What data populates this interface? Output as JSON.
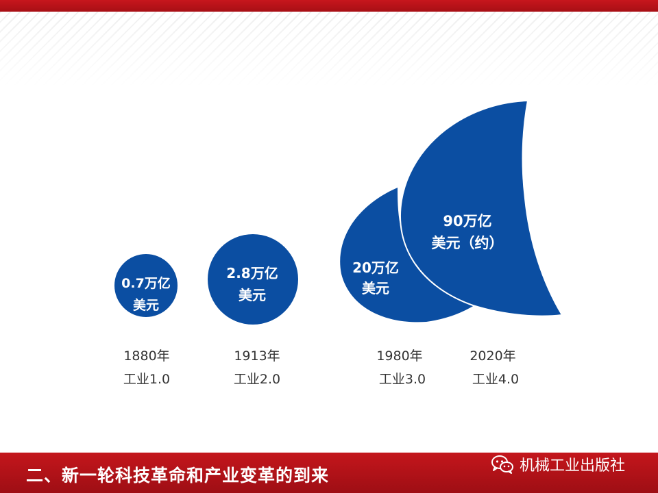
{
  "slide": {
    "section_title": "二、新一轮科技革命和产业变革的到来",
    "watermark_label": "机械工业出版社",
    "colors": {
      "bar_red": "#c4161c",
      "bubble_blue": "#0b4ea2",
      "text_dark": "#333333"
    }
  },
  "stages": [
    {
      "value_line1": "0.7万亿",
      "value_line2": "美元",
      "year": "1880年",
      "stage": "工业1.0"
    },
    {
      "value_line1": "2.8万亿",
      "value_line2": "美元",
      "year": "1913年",
      "stage": "工业2.0"
    },
    {
      "value_line1": "20万亿",
      "value_line2": "美元",
      "year": "1980年",
      "stage": "工业3.0"
    },
    {
      "value_line1": "90万亿",
      "value_line2": "美元（约）",
      "year": "2020年",
      "stage": "工业4.0"
    }
  ]
}
